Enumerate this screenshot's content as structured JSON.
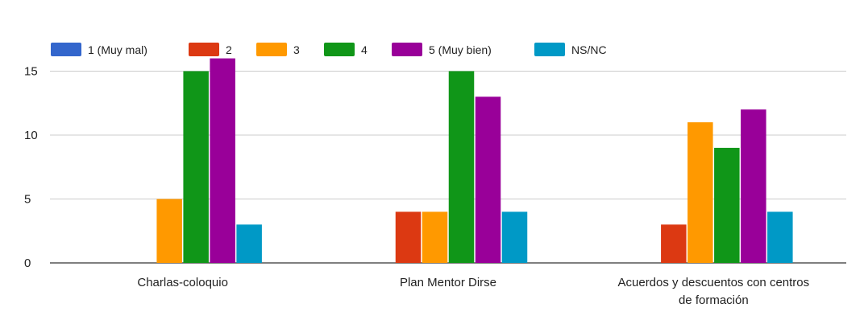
{
  "chart_data": {
    "type": "bar",
    "categories": [
      "Charlas-coloquio",
      "Plan Mentor Dirse",
      "Acuerdos y descuentos con centros de formación"
    ],
    "category_lines": [
      [
        "Charlas-coloquio"
      ],
      [
        "Plan Mentor Dirse"
      ],
      [
        "Acuerdos y descuentos con centros",
        "de formación"
      ]
    ],
    "series": [
      {
        "name": "1 (Muy mal)",
        "color": "#3366cc",
        "values": [
          0,
          0,
          0
        ]
      },
      {
        "name": "2",
        "color": "#dc3912",
        "values": [
          0,
          4,
          3
        ]
      },
      {
        "name": "3",
        "color": "#ff9900",
        "values": [
          5,
          4,
          11
        ]
      },
      {
        "name": "4",
        "color": "#109618",
        "values": [
          15,
          15,
          9
        ]
      },
      {
        "name": "5 (Muy bien)",
        "color": "#990099",
        "values": [
          16,
          13,
          12
        ]
      },
      {
        "name": "NS/NC",
        "color": "#0099c6",
        "values": [
          3,
          4,
          4
        ]
      }
    ],
    "yticks": [
      0,
      5,
      10,
      15
    ],
    "ylim": [
      0,
      16
    ],
    "grid": true,
    "legend_position": "top-left"
  }
}
